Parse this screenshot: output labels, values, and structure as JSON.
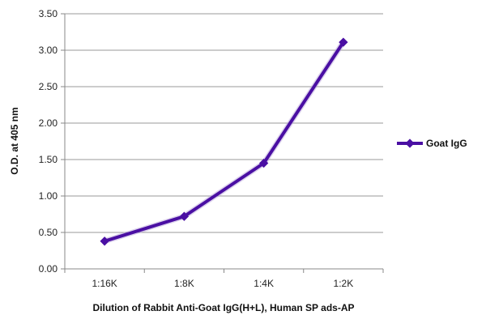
{
  "chart_data": {
    "type": "line",
    "title": "",
    "xlabel": "Dilution of Rabbit Anti-Goat IgG(H+L), Human SP ads-AP",
    "ylabel": "O.D. at 405 nm",
    "categories": [
      "1:16K",
      "1:8K",
      "1:4K",
      "1:2K"
    ],
    "series": [
      {
        "name": "Goat IgG",
        "values": [
          0.38,
          0.72,
          1.45,
          3.11
        ],
        "color": "#4a0fa3",
        "marker": "diamond"
      }
    ],
    "ylim": [
      0,
      3.5
    ],
    "yticks": [
      "0.00",
      "0.50",
      "1.00",
      "1.50",
      "2.00",
      "2.50",
      "3.00",
      "3.50"
    ],
    "grid": true,
    "legend": "right"
  }
}
